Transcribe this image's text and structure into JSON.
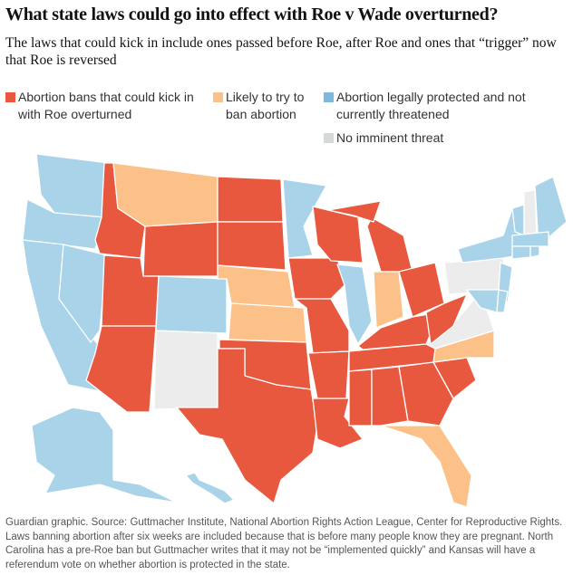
{
  "title": "What state laws could go into effect with Roe v Wade overturned?",
  "subtitle": "The laws that could kick in include ones passed before Roe, after Roe and ones that “trigger” now that Roe is reversed",
  "colors": {
    "ban": "#e8583f",
    "likely": "#fcc089",
    "protected": "#a9d3e9",
    "none": "#ececec",
    "protected_swatch": "#7db9dd",
    "none_swatch": "#d4d8d9"
  },
  "legend": [
    {
      "key": "ban",
      "label": "Abortion bans that could kick in with Roe overturned"
    },
    {
      "key": "likely",
      "label": "Likely to try to ban abortion"
    },
    {
      "key": "protected",
      "label": "Abortion legally protected and not currently threatened"
    },
    {
      "key": "none",
      "label": "No imminent threat"
    }
  ],
  "states": {
    "ban": [
      "ID",
      "WY",
      "UT",
      "AZ",
      "ND",
      "SD",
      "OK",
      "TX",
      "IA",
      "MO",
      "AR",
      "LA",
      "WI",
      "MI",
      "OH",
      "KY",
      "TN",
      "MS",
      "AL",
      "GA",
      "SC",
      "WV"
    ],
    "likely": [
      "MT",
      "NE",
      "KS",
      "IN",
      "FL",
      "NC"
    ],
    "protected": [
      "WA",
      "OR",
      "CA",
      "NV",
      "CO",
      "MN",
      "IL",
      "NY",
      "VT",
      "ME",
      "MA",
      "CT",
      "RI",
      "NJ",
      "DE",
      "MD",
      "DC",
      "AK",
      "HI"
    ],
    "none": [
      "NM",
      "PA",
      "VA",
      "NH"
    ]
  },
  "footnote": "Guardian graphic. Source: Guttmacher Institute, National Abortion Rights Action League, Center for Reproductive Rights. Laws banning abortion after six weeks are included because that is before many people know they are pregnant. North Carolina has a pre-Roe ban but Guttmacher writes that it may not be “implemented quickly” and Kansas will have a referendum vote on whether abortion is protected in the state."
}
